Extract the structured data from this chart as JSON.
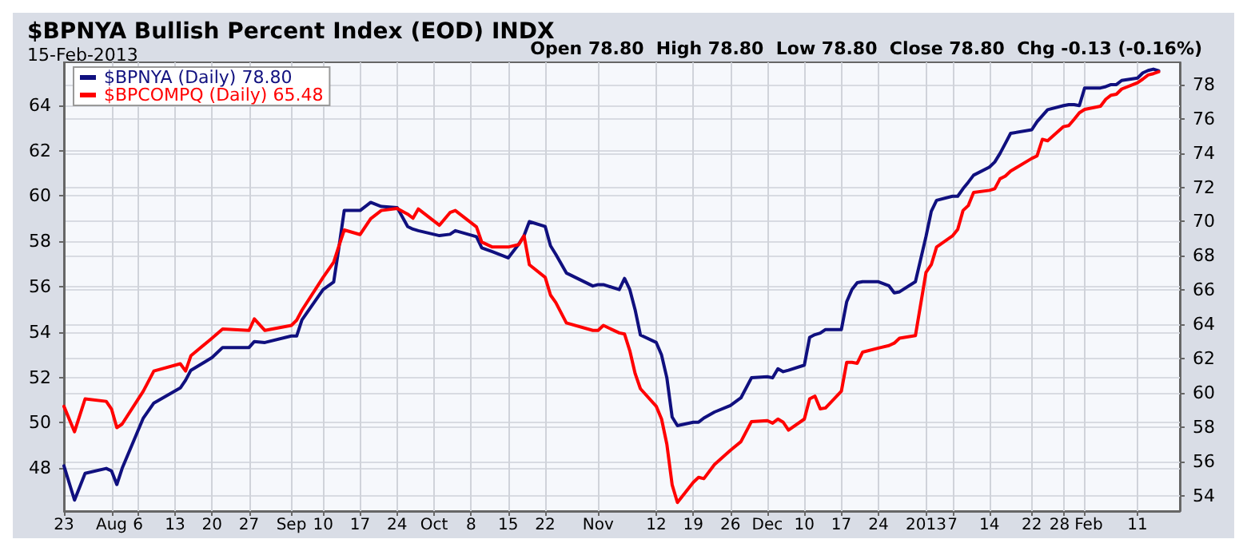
{
  "chart_data": {
    "type": "line",
    "title": "$BPNYA Bullish Percent Index (EOD) INDX",
    "subtitle": "15-Feb-2013",
    "annotations": [
      "Open 78.80  High 78.80  Low 78.80  Close 78.80  Chg -0.13 (-0.16%)"
    ],
    "x": [
      "2012-07-23",
      "2012-07-25",
      "2012-07-27",
      "2012-07-31",
      "2012-08-01",
      "2012-08-02",
      "2012-08-03",
      "2012-08-07",
      "2012-08-09",
      "2012-08-14",
      "2012-08-15",
      "2012-08-16",
      "2012-08-20",
      "2012-08-22",
      "2012-08-27",
      "2012-08-28",
      "2012-08-30",
      "2012-09-04",
      "2012-09-05",
      "2012-09-06",
      "2012-09-10",
      "2012-09-12",
      "2012-09-13",
      "2012-09-14",
      "2012-09-17",
      "2012-09-19",
      "2012-09-21",
      "2012-09-24",
      "2012-09-26",
      "2012-09-27",
      "2012-09-28",
      "2012-10-02",
      "2012-10-04",
      "2012-10-05",
      "2012-10-09",
      "2012-10-10",
      "2012-10-12",
      "2012-10-15",
      "2012-10-17",
      "2012-10-18",
      "2012-10-19",
      "2012-10-22",
      "2012-10-23",
      "2012-10-24",
      "2012-10-26",
      "2012-10-31",
      "2012-11-01",
      "2012-11-02",
      "2012-11-05",
      "2012-11-06",
      "2012-11-07",
      "2012-11-08",
      "2012-11-09",
      "2012-11-12",
      "2012-11-13",
      "2012-11-14",
      "2012-11-15",
      "2012-11-16",
      "2012-11-19",
      "2012-11-20",
      "2012-11-21",
      "2012-11-23",
      "2012-11-26",
      "2012-11-28",
      "2012-11-30",
      "2012-12-03",
      "2012-12-04",
      "2012-12-05",
      "2012-12-06",
      "2012-12-07",
      "2012-12-10",
      "2012-12-11",
      "2012-12-12",
      "2012-12-13",
      "2012-12-14",
      "2012-12-17",
      "2012-12-18",
      "2012-12-19",
      "2012-12-20",
      "2012-12-21",
      "2012-12-24",
      "2012-12-26",
      "2012-12-27",
      "2012-12-28",
      "2012-12-31",
      "2013-01-02",
      "2013-01-03",
      "2013-01-04",
      "2013-01-07",
      "2013-01-08",
      "2013-01-09",
      "2013-01-10",
      "2013-01-11",
      "2013-01-14",
      "2013-01-15",
      "2013-01-16",
      "2013-01-17",
      "2013-01-18",
      "2013-01-22",
      "2013-01-23",
      "2013-01-24",
      "2013-01-25",
      "2013-01-28",
      "2013-01-29",
      "2013-01-30",
      "2013-01-31",
      "2013-02-01",
      "2013-02-04",
      "2013-02-05",
      "2013-02-06",
      "2013-02-07",
      "2013-02-08",
      "2013-02-11",
      "2013-02-12",
      "2013-02-13",
      "2013-02-14",
      "2013-02-15"
    ],
    "series": [
      {
        "name": "$BPNYA (Daily) 78.80",
        "color": "#10107f",
        "axis": "y2",
        "values": [
          55.74,
          53.74,
          55.3,
          55.59,
          55.44,
          54.65,
          55.59,
          58.53,
          59.41,
          60.29,
          60.74,
          61.32,
          62.06,
          62.65,
          62.65,
          63.0,
          62.94,
          63.32,
          63.32,
          64.26,
          66.03,
          66.47,
          68.5,
          70.65,
          70.65,
          71.12,
          70.88,
          70.82,
          69.71,
          69.56,
          69.47,
          69.18,
          69.26,
          69.47,
          69.12,
          68.47,
          68.24,
          67.88,
          68.68,
          69.18,
          70.0,
          69.71,
          68.59,
          68.09,
          67.0,
          66.24,
          66.32,
          66.32,
          66.03,
          66.68,
          66.03,
          64.85,
          63.38,
          62.94,
          62.21,
          60.88,
          58.59,
          58.09,
          58.29,
          58.29,
          58.53,
          58.88,
          59.26,
          59.71,
          60.88,
          60.94,
          60.88,
          61.41,
          61.24,
          61.32,
          61.62,
          63.24,
          63.4,
          63.49,
          63.7,
          63.7,
          65.31,
          66.04,
          66.43,
          66.49,
          66.49,
          66.25,
          65.84,
          65.9,
          66.49,
          69.13,
          70.6,
          71.24,
          71.48,
          71.48,
          71.92,
          72.3,
          72.71,
          73.18,
          73.48,
          73.98,
          74.56,
          75.15,
          75.36,
          75.83,
          76.18,
          76.53,
          76.77,
          76.83,
          76.83,
          76.77,
          77.8,
          77.8,
          77.88,
          78.0,
          78.0,
          78.24,
          78.38,
          78.68,
          78.82,
          78.9,
          78.8
        ]
      },
      {
        "name": "$BPCOMPQ (Daily) 65.48",
        "color": "#ff0000",
        "values": [
          50.72,
          49.6,
          51.05,
          50.94,
          50.6,
          49.78,
          49.94,
          51.39,
          52.28,
          52.6,
          52.28,
          52.95,
          53.73,
          54.13,
          54.07,
          54.58,
          54.07,
          54.29,
          54.52,
          54.96,
          56.41,
          57.08,
          57.8,
          58.5,
          58.3,
          59.0,
          59.36,
          59.45,
          59.2,
          59.02,
          59.43,
          58.71,
          59.27,
          59.36,
          58.64,
          57.97,
          57.75,
          57.75,
          57.86,
          58.24,
          56.97,
          56.41,
          55.63,
          55.3,
          54.4,
          54.07,
          54.07,
          54.29,
          53.96,
          53.91,
          53.17,
          52.17,
          51.5,
          50.72,
          50.16,
          49.05,
          47.26,
          46.48,
          47.37,
          47.59,
          47.53,
          48.15,
          48.78,
          49.16,
          50.05,
          50.09,
          49.98,
          50.16,
          50.02,
          49.67,
          50.16,
          51.05,
          51.17,
          50.61,
          50.65,
          51.39,
          52.66,
          52.66,
          52.62,
          53.11,
          53.29,
          53.4,
          53.51,
          53.73,
          53.84,
          56.63,
          56.97,
          57.75,
          58.24,
          58.53,
          59.36,
          59.58,
          60.16,
          60.25,
          60.32,
          60.76,
          60.88,
          61.1,
          61.66,
          61.77,
          62.5,
          62.44,
          63.06,
          63.11,
          63.38,
          63.67,
          63.82,
          63.96,
          64.27,
          64.45,
          64.49,
          64.72,
          65.0,
          65.16,
          65.34,
          65.4,
          65.48
        ]
      }
    ],
    "xlim": [
      "2012-07-23",
      "2013-02-19"
    ],
    "xticks": [
      {
        "value": "2012-07-23",
        "label": "23"
      },
      {
        "value": "2012-08-01",
        "label": "Aug"
      },
      {
        "value": "2012-08-06",
        "label": "6"
      },
      {
        "value": "2012-08-13",
        "label": "13"
      },
      {
        "value": "2012-08-20",
        "label": "20"
      },
      {
        "value": "2012-08-27",
        "label": "27"
      },
      {
        "value": "2012-09-04",
        "label": "Sep"
      },
      {
        "value": "2012-09-10",
        "label": "10"
      },
      {
        "value": "2012-09-17",
        "label": "17"
      },
      {
        "value": "2012-09-24",
        "label": "24"
      },
      {
        "value": "2012-10-01",
        "label": "Oct"
      },
      {
        "value": "2012-10-08",
        "label": "8"
      },
      {
        "value": "2012-10-15",
        "label": "15"
      },
      {
        "value": "2012-10-22",
        "label": "22"
      },
      {
        "value": "2012-11-01",
        "label": "Nov"
      },
      {
        "value": "2012-11-12",
        "label": "12"
      },
      {
        "value": "2012-11-19",
        "label": "19"
      },
      {
        "value": "2012-11-26",
        "label": "26"
      },
      {
        "value": "2012-12-03",
        "label": "Dec"
      },
      {
        "value": "2012-12-10",
        "label": "10"
      },
      {
        "value": "2012-12-17",
        "label": "17"
      },
      {
        "value": "2012-12-24",
        "label": "24"
      },
      {
        "value": "2013-01-02",
        "label": "2013"
      },
      {
        "value": "2013-01-07",
        "label": "7"
      },
      {
        "value": "2013-01-14",
        "label": "14"
      },
      {
        "value": "2013-01-22",
        "label": "22"
      },
      {
        "value": "2013-01-28",
        "label": "28"
      },
      {
        "value": "2013-02-01",
        "label": "Feb"
      },
      {
        "value": "2013-02-11",
        "label": "11"
      }
    ],
    "ylim": [
      46.1,
      65.9
    ],
    "yticks": [
      48,
      50,
      52,
      54,
      56,
      58,
      60,
      62,
      64
    ],
    "y2lim": [
      53.1,
      79.3
    ],
    "y2ticks": [
      54,
      56,
      58,
      60,
      62,
      64,
      66,
      68,
      70,
      72,
      74,
      76,
      78
    ],
    "grid": true,
    "legend": "top left",
    "marker": "none",
    "line_style": "solid"
  }
}
